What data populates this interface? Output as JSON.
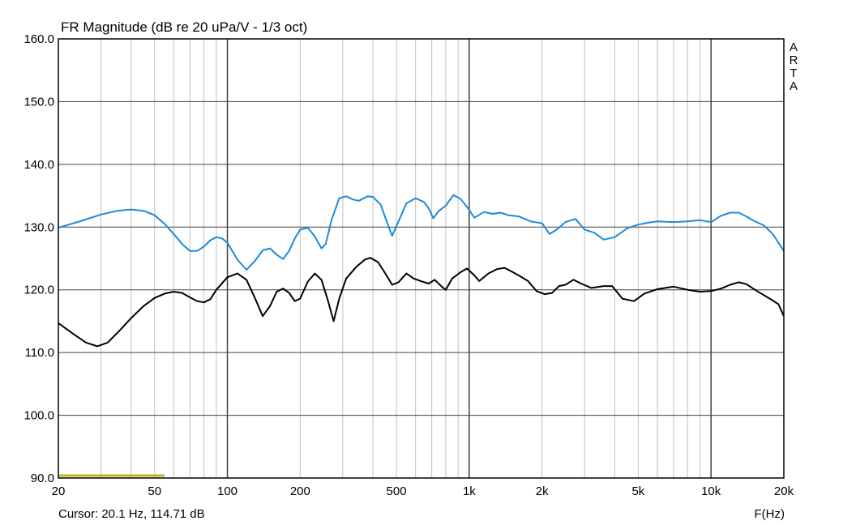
{
  "app": {
    "brand_letters": [
      "A",
      "R",
      "T",
      "A"
    ]
  },
  "status": {
    "cursor_text": "Cursor: 20.1 Hz, 114.71 dB",
    "x_unit_label": "F(Hz)"
  },
  "colors": {
    "series_1": "#1f8ad8",
    "series_2": "#000000",
    "marker": "#b8b820",
    "grid": "#c0c0c0",
    "grid_major": "#404040"
  },
  "chart_data": {
    "type": "line",
    "title": "FR Magnitude (dB re 20 uPa/V - 1/3 oct)",
    "xlabel": "F(Hz)",
    "ylabel": "",
    "xscale": "log",
    "xlim": [
      20,
      20000
    ],
    "ylim": [
      90,
      160
    ],
    "grid": true,
    "yticks": [
      90,
      100,
      110,
      120,
      130,
      140,
      150,
      160
    ],
    "ytick_labels": [
      "90.0",
      "100.0",
      "110.0",
      "120.0",
      "130.0",
      "140.0",
      "150.0",
      "160.0"
    ],
    "xticks": [
      20,
      50,
      100,
      200,
      500,
      1000,
      2000,
      5000,
      10000,
      20000
    ],
    "xtick_labels": [
      "20",
      "50",
      "100",
      "200",
      "500",
      "1k",
      "2k",
      "5k",
      "10k",
      "20k"
    ],
    "x_minor_grid": [
      30,
      40,
      60,
      70,
      80,
      90,
      300,
      400,
      600,
      700,
      800,
      900,
      3000,
      4000,
      6000,
      7000,
      8000,
      9000
    ],
    "cursor_marker": {
      "from": 20,
      "to": 55,
      "value": 90
    },
    "series": [
      {
        "color": "#1f8ad8",
        "points": [
          [
            20,
            129.9
          ],
          [
            25,
            131.0
          ],
          [
            30,
            132.0
          ],
          [
            35,
            132.6
          ],
          [
            40,
            132.8
          ],
          [
            45,
            132.6
          ],
          [
            50,
            131.9
          ],
          [
            55,
            130.5
          ],
          [
            60,
            128.9
          ],
          [
            65,
            127.3
          ],
          [
            70,
            126.2
          ],
          [
            75,
            126.2
          ],
          [
            80,
            126.9
          ],
          [
            85,
            127.9
          ],
          [
            90,
            128.4
          ],
          [
            95,
            128.2
          ],
          [
            100,
            127.5
          ],
          [
            110,
            124.8
          ],
          [
            120,
            123.2
          ],
          [
            130,
            124.6
          ],
          [
            140,
            126.3
          ],
          [
            150,
            126.6
          ],
          [
            160,
            125.6
          ],
          [
            170,
            124.9
          ],
          [
            180,
            126.2
          ],
          [
            190,
            128.2
          ],
          [
            200,
            129.6
          ],
          [
            215,
            129.9
          ],
          [
            230,
            128.5
          ],
          [
            245,
            126.6
          ],
          [
            255,
            127.3
          ],
          [
            270,
            131.2
          ],
          [
            290,
            134.6
          ],
          [
            310,
            134.9
          ],
          [
            330,
            134.4
          ],
          [
            350,
            134.2
          ],
          [
            380,
            134.9
          ],
          [
            400,
            134.8
          ],
          [
            430,
            133.6
          ],
          [
            460,
            130.5
          ],
          [
            480,
            128.6
          ],
          [
            510,
            130.9
          ],
          [
            550,
            133.8
          ],
          [
            600,
            134.6
          ],
          [
            650,
            134.0
          ],
          [
            680,
            133.0
          ],
          [
            710,
            131.4
          ],
          [
            750,
            132.6
          ],
          [
            800,
            133.4
          ],
          [
            860,
            135.1
          ],
          [
            920,
            134.5
          ],
          [
            980,
            133.2
          ],
          [
            1050,
            131.5
          ],
          [
            1150,
            132.4
          ],
          [
            1250,
            132.1
          ],
          [
            1350,
            132.3
          ],
          [
            1450,
            131.9
          ],
          [
            1600,
            131.7
          ],
          [
            1800,
            130.9
          ],
          [
            2000,
            130.6
          ],
          [
            2150,
            128.9
          ],
          [
            2300,
            129.6
          ],
          [
            2500,
            130.8
          ],
          [
            2750,
            131.3
          ],
          [
            3000,
            129.6
          ],
          [
            3300,
            129.1
          ],
          [
            3600,
            128.0
          ],
          [
            4000,
            128.4
          ],
          [
            4500,
            129.8
          ],
          [
            5000,
            130.4
          ],
          [
            5500,
            130.7
          ],
          [
            6000,
            130.9
          ],
          [
            7000,
            130.8
          ],
          [
            8000,
            130.9
          ],
          [
            9000,
            131.1
          ],
          [
            10000,
            130.8
          ],
          [
            11000,
            131.8
          ],
          [
            12000,
            132.3
          ],
          [
            13000,
            132.3
          ],
          [
            14000,
            131.7
          ],
          [
            15000,
            131.0
          ],
          [
            16500,
            130.3
          ],
          [
            18000,
            128.9
          ],
          [
            20000,
            126.2
          ]
        ]
      },
      {
        "color": "#000000",
        "points": [
          [
            20,
            114.7
          ],
          [
            23,
            113.0
          ],
          [
            26,
            111.6
          ],
          [
            29,
            111.0
          ],
          [
            32,
            111.6
          ],
          [
            36,
            113.6
          ],
          [
            40,
            115.5
          ],
          [
            45,
            117.4
          ],
          [
            50,
            118.7
          ],
          [
            55,
            119.4
          ],
          [
            60,
            119.7
          ],
          [
            65,
            119.5
          ],
          [
            70,
            118.8
          ],
          [
            75,
            118.2
          ],
          [
            80,
            118.0
          ],
          [
            85,
            118.5
          ],
          [
            90,
            120.0
          ],
          [
            100,
            122.0
          ],
          [
            110,
            122.6
          ],
          [
            120,
            121.6
          ],
          [
            130,
            118.7
          ],
          [
            140,
            115.8
          ],
          [
            150,
            117.4
          ],
          [
            160,
            119.7
          ],
          [
            170,
            120.2
          ],
          [
            180,
            119.5
          ],
          [
            190,
            118.2
          ],
          [
            200,
            118.6
          ],
          [
            215,
            121.3
          ],
          [
            230,
            122.6
          ],
          [
            245,
            121.6
          ],
          [
            260,
            118.4
          ],
          [
            275,
            115.0
          ],
          [
            290,
            118.6
          ],
          [
            310,
            121.8
          ],
          [
            340,
            123.6
          ],
          [
            370,
            124.8
          ],
          [
            390,
            125.1
          ],
          [
            420,
            124.4
          ],
          [
            450,
            122.6
          ],
          [
            480,
            120.8
          ],
          [
            510,
            121.2
          ],
          [
            550,
            122.6
          ],
          [
            590,
            121.8
          ],
          [
            630,
            121.4
          ],
          [
            680,
            121.0
          ],
          [
            720,
            121.6
          ],
          [
            770,
            120.5
          ],
          [
            800,
            120.0
          ],
          [
            850,
            121.8
          ],
          [
            920,
            122.8
          ],
          [
            980,
            123.4
          ],
          [
            1050,
            122.3
          ],
          [
            1100,
            121.4
          ],
          [
            1200,
            122.6
          ],
          [
            1300,
            123.3
          ],
          [
            1400,
            123.5
          ],
          [
            1500,
            122.9
          ],
          [
            1600,
            122.3
          ],
          [
            1750,
            121.4
          ],
          [
            1900,
            119.8
          ],
          [
            2050,
            119.3
          ],
          [
            2200,
            119.5
          ],
          [
            2350,
            120.6
          ],
          [
            2500,
            120.8
          ],
          [
            2700,
            121.6
          ],
          [
            2900,
            121.0
          ],
          [
            3200,
            120.3
          ],
          [
            3600,
            120.6
          ],
          [
            3900,
            120.6
          ],
          [
            4300,
            118.6
          ],
          [
            4800,
            118.2
          ],
          [
            5300,
            119.4
          ],
          [
            6000,
            120.1
          ],
          [
            7000,
            120.5
          ],
          [
            8000,
            120.0
          ],
          [
            9000,
            119.7
          ],
          [
            10000,
            119.8
          ],
          [
            11000,
            120.2
          ],
          [
            12000,
            120.8
          ],
          [
            13000,
            121.2
          ],
          [
            14000,
            120.9
          ],
          [
            15500,
            119.8
          ],
          [
            17500,
            118.6
          ],
          [
            19000,
            117.7
          ],
          [
            20000,
            115.8
          ]
        ]
      }
    ]
  }
}
